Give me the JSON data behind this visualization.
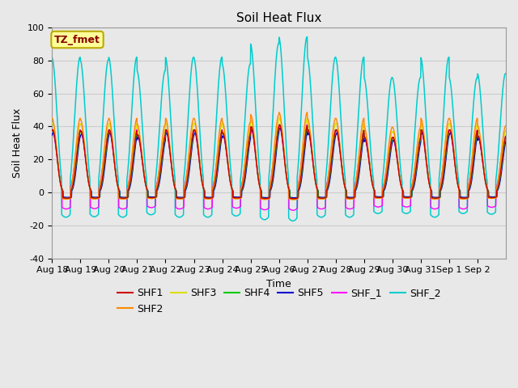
{
  "title": "Soil Heat Flux",
  "xlabel": "Time",
  "ylabel": "Soil Heat Flux",
  "ylim": [
    -40,
    100
  ],
  "yticks": [
    -40,
    -20,
    0,
    20,
    40,
    60,
    80,
    100
  ],
  "xtick_labels": [
    "Aug 18",
    "Aug 19",
    "Aug 20",
    "Aug 21",
    "Aug 22",
    "Aug 23",
    "Aug 24",
    "Aug 25",
    "Aug 26",
    "Aug 27",
    "Aug 28",
    "Aug 29",
    "Aug 30",
    "Aug 31",
    "Sep 1",
    "Sep 2"
  ],
  "annotation_text": "TZ_fmet",
  "annotation_bg": "#ffff99",
  "annotation_border": "#bbaa00",
  "annotation_textcolor": "#880000",
  "colors": {
    "SHF1": "#cc0000",
    "SHF2": "#ff8800",
    "SHF3": "#dddd00",
    "SHF4": "#00cc00",
    "SHF5": "#0000cc",
    "SHF_1": "#ff00ff",
    "SHF_2": "#00cccc"
  },
  "grid_color": "#cccccc",
  "plot_bg": "#e8e8e8",
  "fig_bg": "#e8e8e8",
  "title_fontsize": 11,
  "axis_fontsize": 9,
  "tick_fontsize": 8,
  "legend_fontsize": 9
}
